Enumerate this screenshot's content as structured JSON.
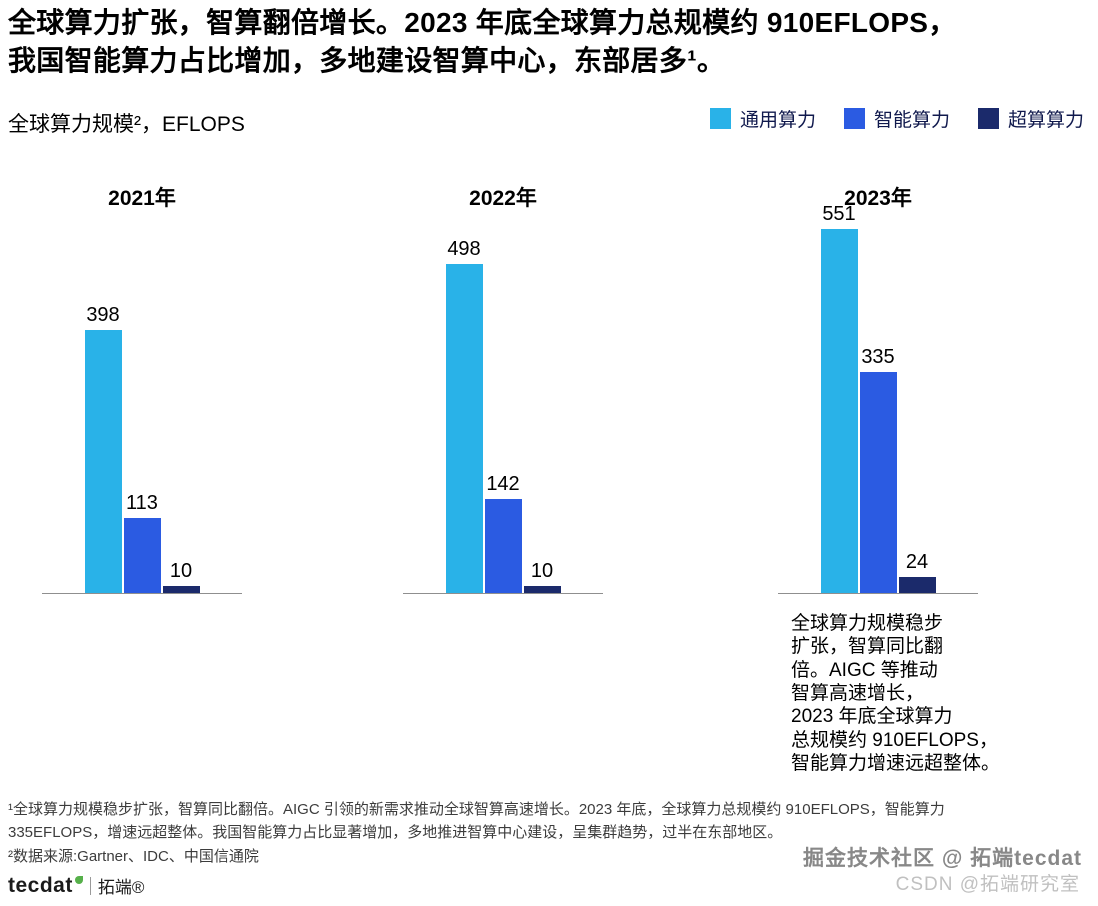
{
  "header": {
    "title": "全球算力扩张，智算翻倍增长。2023 年底全球算力总规模约 910EFLOPS，\n我国智能算力占比增加，多地建设智算中心，东部居多¹。",
    "subtitle": "全球算力规模²，EFLOPS"
  },
  "chart_data": {
    "type": "bar",
    "title": "全球算力规模，EFLOPS",
    "unit": "EFLOPS",
    "categories": [
      "2021年",
      "2022年",
      "2023年"
    ],
    "series": [
      {
        "name": "通用算力",
        "color": "#29B2E8",
        "values": [
          398,
          498,
          551
        ]
      },
      {
        "name": "智能算力",
        "color": "#2B5BE2",
        "values": [
          113,
          142,
          335
        ]
      },
      {
        "name": "超算算力",
        "color": "#1B2A6B",
        "values": [
          10,
          10,
          24
        ]
      }
    ],
    "value_labels": true,
    "legend_position": "top-right",
    "ylim": [
      0,
      560
    ],
    "grid": false,
    "axis": "baseline-only"
  },
  "annotation": "全球算力规模稳步\n扩张，智算同比翻\n倍。AIGC 等推动\n智算高速增长，\n2023 年底全球算力\n总规模约 910EFLOPS，\n智能算力增速远超整体。",
  "footnotes": {
    "note1": "¹全球算力规模稳步扩张，智算同比翻倍。AIGC 引领的新需求推动全球智算高速增长。2023 年底，全球算力总规模约 910EFLOPS，智能算力\n335EFLOPS，增速远超整体。我国智能算力占比显著增加，多地推进智算中心建设，呈集群趋势，过半在东部地区。",
    "note2": "²数据来源:Gartner、IDC、中国信通院"
  },
  "branding": {
    "logo_text": "tecdat",
    "logo_cn": "拓端®"
  },
  "watermark": {
    "line1": "掘金技术社区 @ 拓端tecdat",
    "line2": "CSDN @拓端研究室"
  }
}
